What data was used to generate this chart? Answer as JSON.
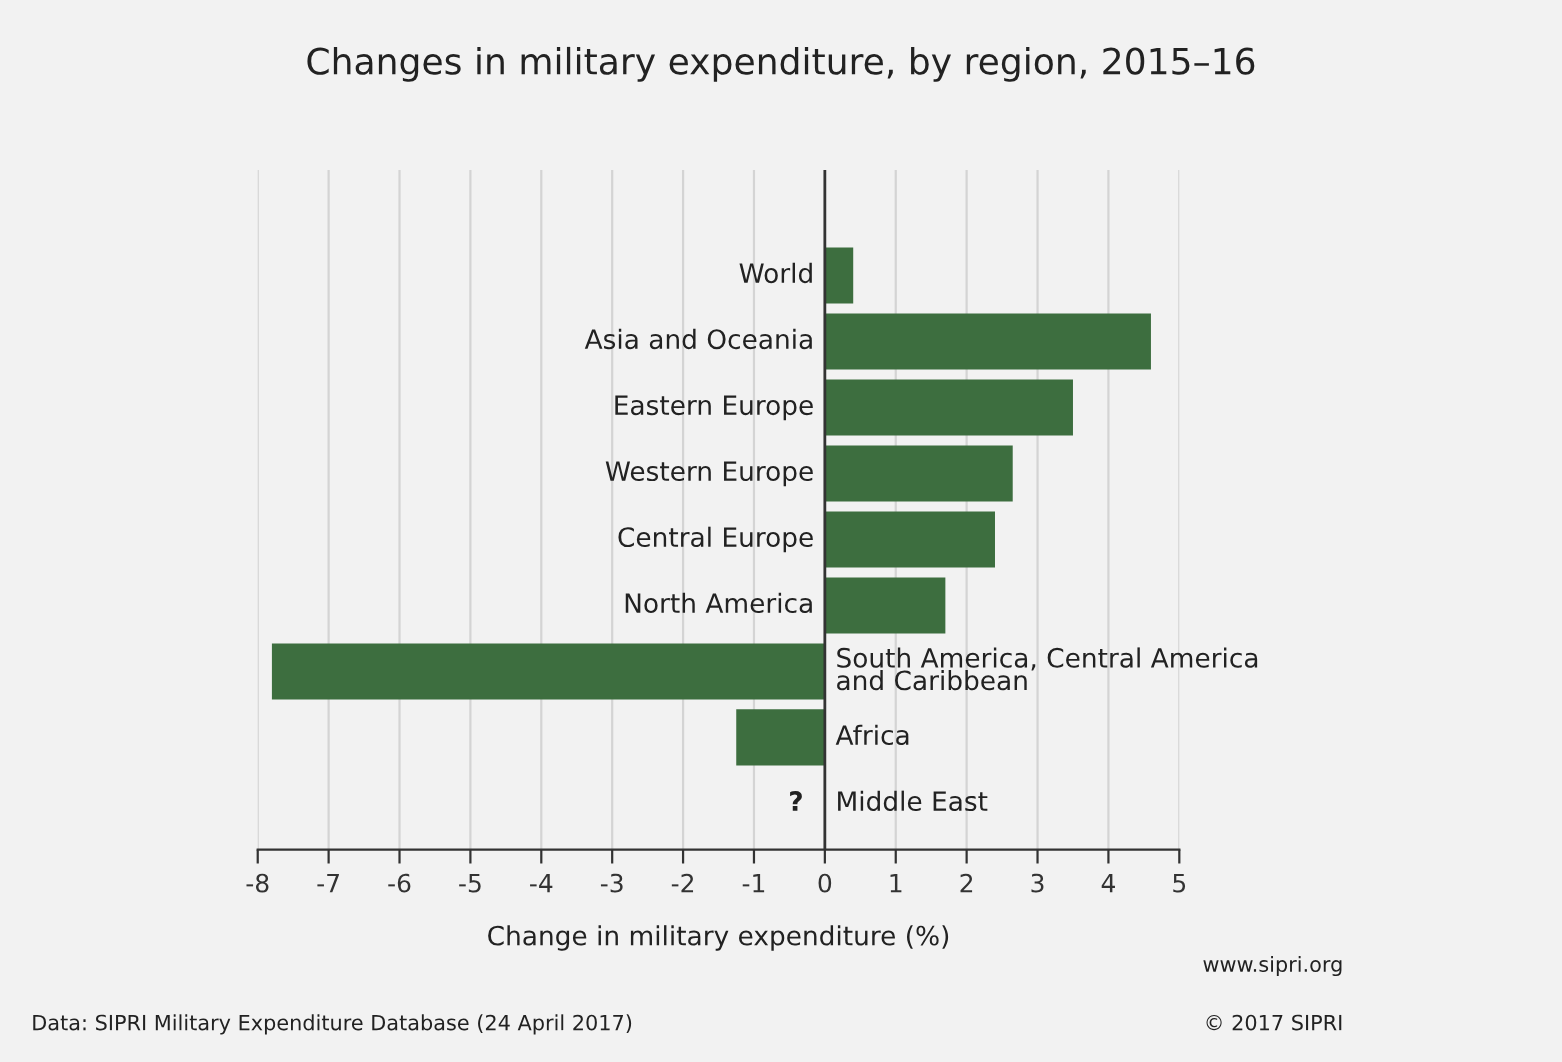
{
  "chart_data": {
    "type": "bar",
    "orientation": "horizontal",
    "title": "Changes in military expenditure, by region, 2015–16",
    "xlabel": "Change in military expenditure (%)",
    "categories": [
      "World",
      "Asia and Oceania",
      "Eastern Europe",
      "Western Europe",
      "Central Europe",
      "North America",
      "South America, Central America\nand Caribbean",
      "Africa",
      "Middle East"
    ],
    "values": [
      0.4,
      4.6,
      3.5,
      2.65,
      2.4,
      1.7,
      -7.8,
      -1.25,
      null
    ],
    "color": "#3d6e3f",
    "xlim": [
      -8,
      5
    ],
    "xticks": [
      -8,
      -7,
      -6,
      -5,
      -4,
      -3,
      -2,
      -1,
      0,
      1,
      2,
      3,
      4,
      5
    ],
    "grid": "x",
    "annotations": [
      "?",
      "Data: SIPRI Military Expenditure Database (24 April 2017)",
      "www.sipri.org",
      "© 2017 SIPRI"
    ]
  }
}
